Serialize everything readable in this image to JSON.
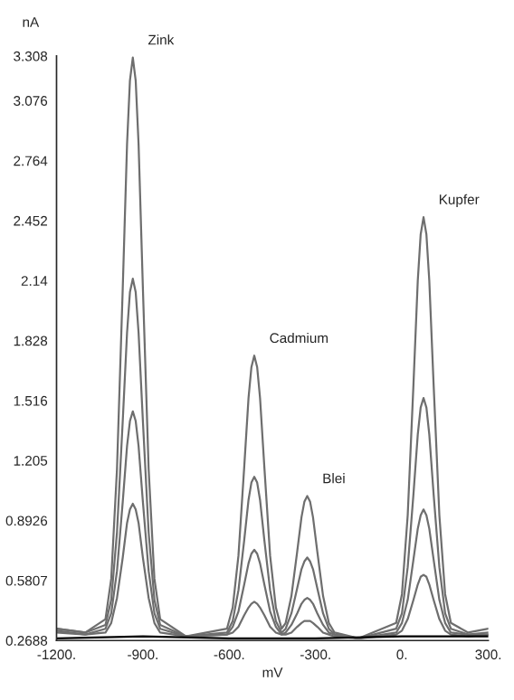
{
  "chart_data": {
    "type": "line",
    "xlabel": "mV",
    "ylabel": "nA",
    "x": [
      -1200,
      -1100,
      -1030,
      -1010,
      -990,
      -970,
      -955,
      -945,
      -935,
      -925,
      -915,
      -900,
      -880,
      -860,
      -840,
      -750,
      -608,
      -588,
      -568,
      -548,
      -533,
      -523,
      -513,
      -503,
      -493,
      -478,
      -458,
      -438,
      -418,
      -404,
      -384,
      -364,
      -349,
      -339,
      -329,
      -319,
      -309,
      -294,
      -274,
      -254,
      -234,
      -150,
      -20,
      0,
      20,
      40,
      55,
      65,
      75,
      85,
      95,
      110,
      130,
      150,
      170,
      230,
      300
    ],
    "series": [
      {
        "color": "#6e6e6e",
        "values": [
          0.33,
          0.31,
          0.38,
          0.59,
          1.16,
          2.1,
          2.85,
          3.18,
          3.3,
          3.18,
          2.85,
          2.1,
          1.16,
          0.59,
          0.38,
          0.29,
          0.33,
          0.44,
          0.71,
          1.17,
          1.53,
          1.69,
          1.75,
          1.69,
          1.53,
          1.17,
          0.71,
          0.44,
          0.33,
          0.36,
          0.5,
          0.73,
          0.91,
          0.99,
          1.02,
          0.99,
          0.91,
          0.73,
          0.5,
          0.36,
          0.31,
          0.28,
          0.36,
          0.51,
          0.92,
          1.6,
          2.14,
          2.38,
          2.47,
          2.38,
          2.14,
          1.6,
          0.92,
          0.51,
          0.36,
          0.31,
          0.33
        ]
      },
      {
        "color": "#6e6e6e",
        "values": [
          0.33,
          0.31,
          0.35,
          0.48,
          0.83,
          1.41,
          1.87,
          2.08,
          2.15,
          2.08,
          1.87,
          1.41,
          0.83,
          0.48,
          0.35,
          0.29,
          0.31,
          0.37,
          0.53,
          0.79,
          1.0,
          1.09,
          1.12,
          1.09,
          1.0,
          0.79,
          0.53,
          0.37,
          0.31,
          0.33,
          0.41,
          0.54,
          0.64,
          0.68,
          0.7,
          0.68,
          0.64,
          0.54,
          0.41,
          0.33,
          0.3,
          0.28,
          0.33,
          0.41,
          0.65,
          1.03,
          1.34,
          1.48,
          1.53,
          1.48,
          1.34,
          1.03,
          0.65,
          0.41,
          0.33,
          0.3,
          0.31
        ]
      },
      {
        "color": "#6e6e6e",
        "values": [
          0.32,
          0.3,
          0.33,
          0.41,
          0.63,
          0.99,
          1.28,
          1.41,
          1.46,
          1.41,
          1.28,
          0.99,
          0.63,
          0.41,
          0.33,
          0.29,
          0.3,
          0.34,
          0.42,
          0.56,
          0.67,
          0.72,
          0.74,
          0.72,
          0.67,
          0.56,
          0.42,
          0.34,
          0.3,
          0.31,
          0.35,
          0.41,
          0.46,
          0.48,
          0.49,
          0.48,
          0.46,
          0.41,
          0.35,
          0.31,
          0.3,
          0.28,
          0.31,
          0.36,
          0.48,
          0.69,
          0.85,
          0.92,
          0.95,
          0.92,
          0.85,
          0.69,
          0.48,
          0.36,
          0.31,
          0.3,
          0.3
        ]
      },
      {
        "color": "#6e6e6e",
        "values": [
          0.31,
          0.3,
          0.31,
          0.36,
          0.49,
          0.7,
          0.88,
          0.95,
          0.98,
          0.95,
          0.88,
          0.7,
          0.49,
          0.36,
          0.31,
          0.29,
          0.3,
          0.31,
          0.34,
          0.4,
          0.44,
          0.46,
          0.47,
          0.46,
          0.44,
          0.4,
          0.34,
          0.31,
          0.3,
          0.3,
          0.31,
          0.34,
          0.36,
          0.37,
          0.37,
          0.37,
          0.36,
          0.34,
          0.31,
          0.3,
          0.29,
          0.28,
          0.3,
          0.32,
          0.38,
          0.48,
          0.56,
          0.6,
          0.61,
          0.6,
          0.56,
          0.48,
          0.38,
          0.32,
          0.3,
          0.29,
          0.3
        ]
      },
      {
        "color": "#000000",
        "x": [
          -1200,
          -900,
          -600,
          -300,
          0,
          300
        ],
        "values": [
          0.28,
          0.29,
          0.28,
          0.28,
          0.29,
          0.29
        ]
      }
    ],
    "annotations": [
      {
        "text": "Zink",
        "x": -935,
        "y": 3.3
      },
      {
        "text": "Cadmium",
        "x": -513,
        "y": 1.75
      },
      {
        "text": "Blei",
        "x": -329,
        "y": 1.02
      },
      {
        "text": "Kupfer",
        "x": 75,
        "y": 2.47
      }
    ],
    "xlim": [
      -1200,
      300
    ],
    "xticks": [
      {
        "value": -1200,
        "label": "-1200."
      },
      {
        "value": -900,
        "label": "-900."
      },
      {
        "value": -600,
        "label": "-600."
      },
      {
        "value": -300,
        "label": "-300."
      },
      {
        "value": 0,
        "label": "0."
      },
      {
        "value": 300,
        "label": "300."
      }
    ],
    "ylim": [
      0.2688,
      3.308
    ],
    "yticks": [
      0.2688,
      0.5807,
      0.8926,
      1.205,
      1.516,
      1.828,
      2.14,
      2.452,
      2.764,
      3.076,
      3.308
    ],
    "grid": false,
    "legend": false
  }
}
